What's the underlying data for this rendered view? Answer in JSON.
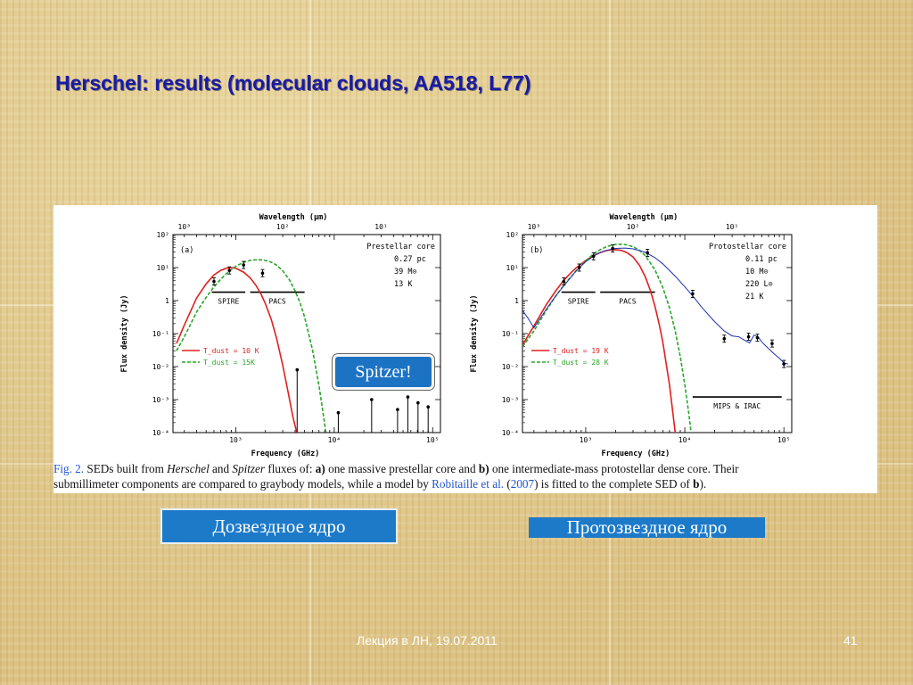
{
  "slide": {
    "title": "Herschel: results (molecular clouds, AA518, L77)",
    "footer": "Лекция в ЛН, 19.07.2011",
    "page_number": "41",
    "spitzer_label": "Spitzer!",
    "label_a": "Дозвездное ядро",
    "label_b": "Протозвездное ядро",
    "colors": {
      "title": "#1a1aa6",
      "label_bg": "#1c7ac9",
      "red_curve": "#e02020",
      "green_curve": "#2aa52a",
      "blue_curve": "#1d2fb0"
    }
  },
  "caption": {
    "fig": "Fig. 2.",
    "p1": " SEDs built from ",
    "herschel": "Herschel",
    "p2": " and ",
    "spitzer": "Spitzer",
    "p3": " fluxes of: ",
    "a": "a)",
    "p4": " one massive prestellar core and ",
    "b": "b)",
    "p5": " one intermediate-mass protostellar dense core. Their",
    "p6": "submillimeter components are compared to graybody models, while a model by ",
    "ref": "Robitaille et al.",
    "p7": " (",
    "year": "2007",
    "p8": ") is fitted to the complete SED of ",
    "b2": "b",
    "p9": ")."
  },
  "chart_data": [
    {
      "type": "scatter",
      "panel": "(a)",
      "top_axis_label": "Wavelength (μm)",
      "top_ticks": [
        "10³",
        "10²",
        "10¹"
      ],
      "xlabel": "Frequency (GHz)",
      "ylabel": "Flux density (Jy)",
      "x_ticks": [
        "10³",
        "10⁴",
        "10⁵"
      ],
      "y_ticks": [
        "10⁻⁴",
        "10⁻³",
        "10⁻²",
        "10⁻¹",
        "1",
        "10¹",
        "10²"
      ],
      "xlim": [
        230,
        120000
      ],
      "ylim": [
        0.0001,
        100
      ],
      "annotation": [
        "Prestellar core",
        "0.27 pc",
        "39 M⊙",
        "13 K"
      ],
      "bands": [
        {
          "name": "SPIRE",
          "x": [
            570,
            1250
          ],
          "y": 1.8
        },
        {
          "name": "PACS",
          "x": [
            1400,
            5000
          ],
          "y": 1.8
        }
      ],
      "series": [
        {
          "name": "T_dust = 10 K",
          "style": "red-solid",
          "x": [
            250,
            300,
            400,
            500,
            600,
            700,
            800,
            900,
            1000,
            1200,
            1400,
            1600,
            1800,
            2000,
            2300,
            2600,
            3000,
            3400,
            3800,
            4200,
            4600,
            5000,
            5500
          ],
          "y": [
            0.05,
            0.18,
            1.2,
            3.2,
            6.0,
            8.2,
            9.6,
            10.0,
            9.5,
            7.3,
            4.9,
            2.9,
            1.6,
            0.8,
            0.26,
            0.07,
            0.011,
            0.0017,
            0.0003,
            9e-05,
            3e-05,
            1e-05,
            2e-06
          ]
        },
        {
          "name": "T_dust = 15K",
          "style": "green-dashed",
          "x": [
            250,
            300,
            400,
            500,
            600,
            700,
            800,
            1000,
            1200,
            1400,
            1600,
            1800,
            2000,
            2300,
            2600,
            3000,
            3500,
            4000,
            4500,
            5000,
            6000,
            7000,
            8000,
            9000
          ],
          "y": [
            0.03,
            0.08,
            0.45,
            1.25,
            2.6,
            4.4,
            6.5,
            11.0,
            14.5,
            16.5,
            17.2,
            17.2,
            16.5,
            14.5,
            11.8,
            8.0,
            4.3,
            2.0,
            0.85,
            0.32,
            0.033,
            0.0026,
            0.00018,
            1e-05
          ]
        },
        {
          "name": "Herschel points",
          "style": "points",
          "x": [
            600,
            860,
            1200,
            1870
          ],
          "y": [
            3.8,
            8.2,
            12.0,
            6.8
          ]
        },
        {
          "name": "upper limits",
          "style": "upper-limits",
          "x": [
            4200,
            11000,
            24000,
            44000,
            56000,
            71000,
            90000
          ],
          "y": [
            0.008,
            0.0004,
            0.001,
            0.0005,
            0.0012,
            0.0008,
            0.0006
          ]
        }
      ]
    },
    {
      "type": "scatter",
      "panel": "(b)",
      "top_axis_label": "Wavelength (μm)",
      "top_ticks": [
        "10³",
        "10²",
        "10¹"
      ],
      "xlabel": "Frequency (GHz)",
      "ylabel": "Flux density (Jy)",
      "x_ticks": [
        "10³",
        "10⁴",
        "10⁵"
      ],
      "y_ticks": [
        "10⁻⁴",
        "10⁻³",
        "10⁻²",
        "10⁻¹",
        "1",
        "10¹",
        "10²"
      ],
      "xlim": [
        230,
        120000
      ],
      "ylim": [
        0.0001,
        100
      ],
      "annotation": [
        "Protostellar core",
        "0.11 pc",
        "10 M⊙",
        "220 L⊙",
        "21 K"
      ],
      "bands": [
        {
          "name": "SPIRE",
          "x": [
            570,
            1250
          ],
          "y": 1.8
        },
        {
          "name": "PACS",
          "x": [
            1400,
            5000
          ],
          "y": 1.8
        },
        {
          "name": "MIPS & IRAC",
          "x": [
            12000,
            95000
          ],
          "y": 0.0012
        }
      ],
      "series": [
        {
          "name": "T_dust = 19 K",
          "style": "red-solid",
          "x": [
            230,
            300,
            400,
            500,
            600,
            700,
            800,
            1000,
            1200,
            1400,
            1600,
            1800,
            2000,
            2300,
            2600,
            3000,
            3500,
            4000,
            4500,
            5000,
            5500,
            6000,
            7000,
            8000,
            9000,
            10000
          ],
          "y": [
            0.045,
            0.17,
            0.75,
            2.0,
            4.1,
            6.7,
            9.8,
            16.5,
            23.0,
            28.5,
            32.5,
            34.5,
            35.0,
            33.0,
            28.5,
            21.0,
            11.5,
            5.2,
            2.0,
            0.67,
            0.2,
            0.055,
            0.0028,
            0.0001,
            3e-06,
            1e-07
          ]
        },
        {
          "name": "T_dust = 28 K",
          "style": "green-dashed",
          "x": [
            230,
            300,
            400,
            500,
            600,
            800,
            1000,
            1200,
            1400,
            1600,
            1800,
            2000,
            2300,
            2600,
            3000,
            3500,
            4000,
            5000,
            6000,
            7000,
            8000,
            9000,
            10000,
            11000,
            12000
          ],
          "y": [
            0.04,
            0.12,
            0.5,
            1.4,
            2.9,
            8.0,
            16.0,
            26.0,
            35.0,
            42.0,
            47.0,
            50.0,
            51.0,
            49.0,
            43.0,
            33.0,
            23.0,
            8.5,
            2.5,
            0.6,
            0.12,
            0.02,
            0.0028,
            0.00035,
            4e-05
          ]
        },
        {
          "name": "Robitaille et al. model",
          "style": "blue-solid",
          "x": [
            230,
            260,
            300,
            400,
            500,
            600,
            800,
            1000,
            1300,
            1600,
            2000,
            2500,
            3000,
            4000,
            5000,
            6000,
            8000,
            10000,
            12500,
            15000,
            20000,
            25000,
            30000,
            35000,
            40000,
            45000,
            50000,
            55000,
            60000,
            70000,
            80000,
            90000,
            100000,
            110000
          ],
          "y": [
            0.5,
            0.3,
            0.15,
            0.55,
            1.4,
            2.8,
            8.0,
            15.0,
            26.0,
            33.0,
            38.0,
            39.0,
            37.0,
            29.0,
            20.0,
            13.0,
            5.5,
            2.6,
            1.2,
            0.6,
            0.23,
            0.12,
            0.085,
            0.08,
            0.063,
            0.052,
            0.09,
            0.08,
            0.055,
            0.035,
            0.024,
            0.018,
            0.013,
            0.012
          ]
        },
        {
          "name": "data points",
          "style": "points",
          "x": [
            600,
            860,
            1200,
            1870,
            4200,
            12000,
            25000,
            44000,
            54000,
            76000,
            100000
          ],
          "y": [
            3.8,
            10.0,
            22.0,
            38.0,
            28.0,
            1.6,
            0.07,
            0.08,
            0.075,
            0.05,
            0.012
          ]
        }
      ]
    }
  ]
}
